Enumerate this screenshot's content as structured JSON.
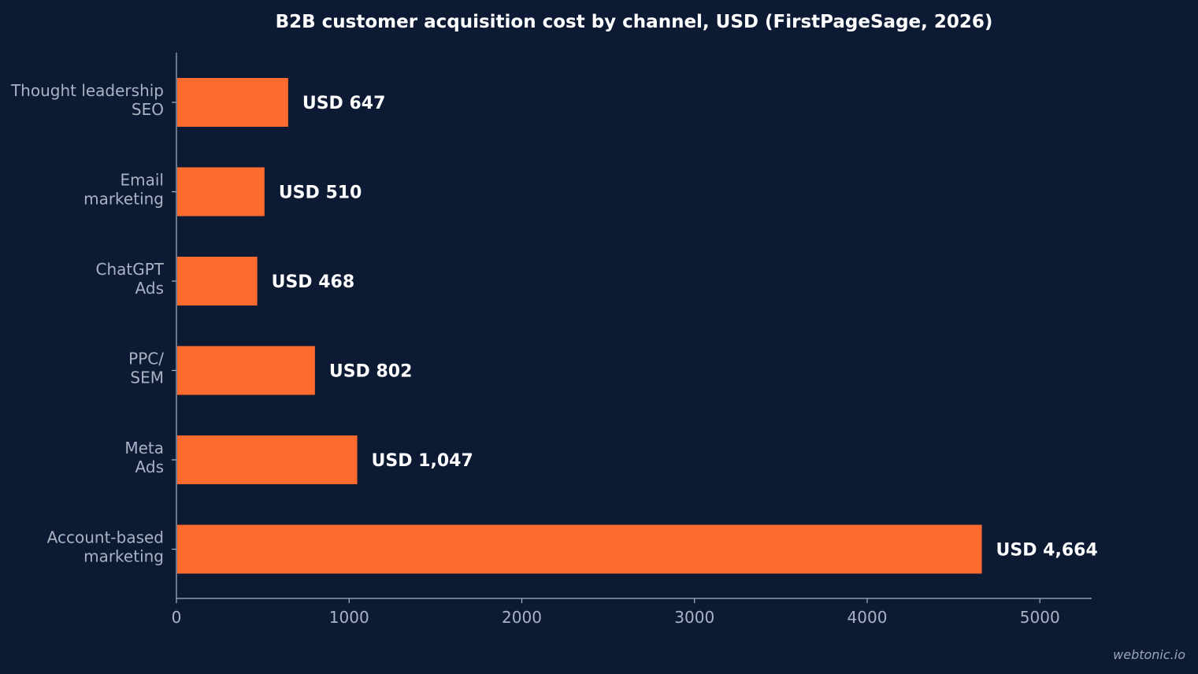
{
  "chart_data": {
    "type": "bar",
    "orientation": "horizontal",
    "title": "B2B customer acquisition cost by channel, USD (FirstPageSage, 2026)",
    "categories": [
      [
        "Thought leadership",
        "SEO"
      ],
      [
        "Email",
        "marketing"
      ],
      [
        "ChatGPT",
        "Ads"
      ],
      [
        "PPC/",
        "SEM"
      ],
      [
        "Meta",
        "Ads"
      ],
      [
        "Account-based",
        "marketing"
      ]
    ],
    "values": [
      647,
      510,
      468,
      802,
      1047,
      4664
    ],
    "data_labels": [
      "USD 647",
      "USD 510",
      "USD 468",
      "USD 802",
      "USD 1,047",
      "USD 4,664"
    ],
    "xlim": [
      0,
      5300
    ],
    "xticks": [
      0,
      1000,
      2000,
      3000,
      4000,
      5000
    ],
    "xtick_labels": [
      "0",
      "1000",
      "2000",
      "3000",
      "4000",
      "5000"
    ],
    "xlabel": "",
    "ylabel": "",
    "grid": false,
    "legend": "none",
    "bar_color": "#ff6b2f",
    "background_color": "#0c1a33",
    "text_color": "#ffffff",
    "axis_color": "#a9b3c4"
  },
  "watermark": "webtonic.io"
}
